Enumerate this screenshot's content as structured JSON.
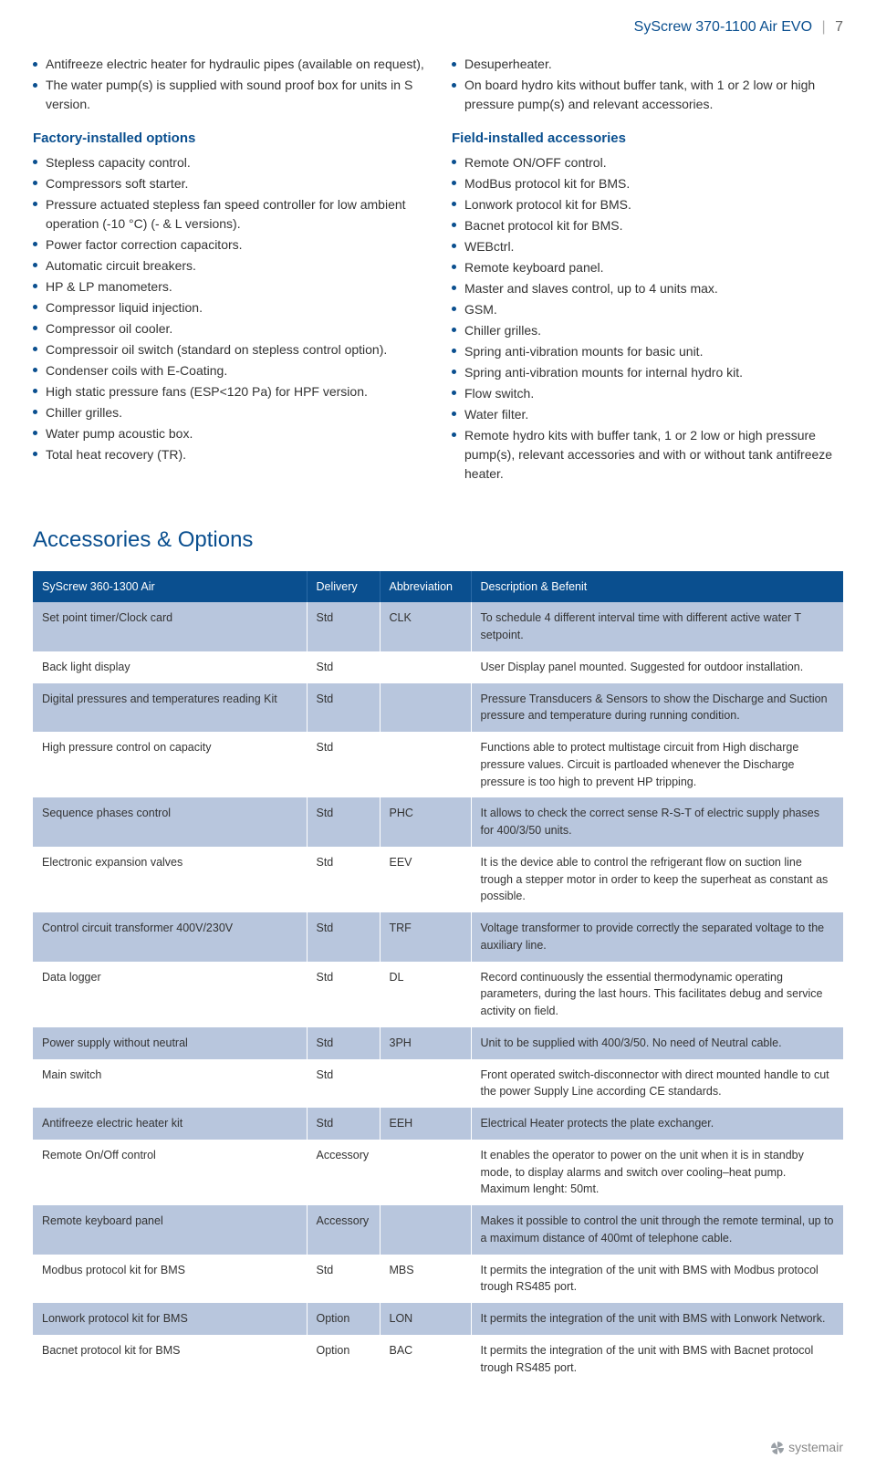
{
  "header": {
    "product": "SyScrew 370-1100 Air EVO",
    "page": "7"
  },
  "left_intro": [
    "Antifreeze electric heater for hydraulic pipes (available on request),",
    "The water pump(s) is supplied with sound proof box for units in S version."
  ],
  "factory_title": "Factory-installed options",
  "factory_items": [
    "Stepless capacity control.",
    "Compressors soft starter.",
    "Pressure actuated stepless fan speed controller for low ambient operation (-10 °C) (- & L versions).",
    "Power factor correction capacitors.",
    "Automatic circuit breakers.",
    "HP & LP manometers.",
    "Compressor liquid injection.",
    "Compressor oil cooler.",
    "Compressoir oil switch (standard on stepless control option).",
    "Condenser coils with E-Coating.",
    "High static pressure fans (ESP<120 Pa) for HPF version.",
    "Chiller grilles.",
    "Water pump acoustic box.",
    "Total heat recovery (TR)."
  ],
  "right_intro": [
    "Desuperheater.",
    "On board hydro kits without buffer tank, with 1 or 2 low or high pressure pump(s) and relevant accessories."
  ],
  "field_title": "Field-installed accessories",
  "field_items": [
    "Remote ON/OFF control.",
    "ModBus protocol kit for BMS.",
    "Lonwork protocol kit for BMS.",
    "Bacnet protocol kit for BMS.",
    "WEBctrl.",
    "Remote keyboard panel.",
    "Master and slaves control, up to 4 units max.",
    "GSM.",
    "Chiller grilles.",
    "Spring anti-vibration mounts for basic unit.",
    "Spring anti-vibration mounts for internal hydro kit.",
    "Flow switch.",
    "Water filter.",
    "Remote hydro kits with buffer tank, 1 or 2 low or high pressure pump(s), relevant accessories and with or without tank antifreeze heater."
  ],
  "acc_title": "Accessories & Options",
  "table": {
    "headers": [
      "SyScrew 360-1300 Air",
      "Delivery",
      "Abbreviation",
      "Description & Befenit"
    ],
    "rows": [
      {
        "name": "Set point timer/Clock card",
        "delivery": "Std",
        "abbr": "CLK",
        "desc": "To schedule 4 different interval time with different active water T setpoint.",
        "shade": "odd"
      },
      {
        "name": "Back light display",
        "delivery": "Std",
        "abbr": "",
        "desc": "User Display panel mounted. Suggested for outdoor installation.",
        "shade": "even"
      },
      {
        "name": "Digital pressures and temperatures reading Kit",
        "delivery": "Std",
        "abbr": "",
        "desc": "Pressure Transducers & Sensors to show the Discharge and Suction pressure and temperature during running condition.",
        "shade": "odd"
      },
      {
        "name": "High pressure control on capacity",
        "delivery": "Std",
        "abbr": "",
        "desc": "Functions able to protect multistage circuit from High discharge pressure values. Circuit is partloaded whenever the Discharge pressure is too high to prevent HP tripping.",
        "shade": "even"
      },
      {
        "name": "Sequence phases control",
        "delivery": "Std",
        "abbr": "PHC",
        "desc": "It allows to check the correct sense R-S-T of electric supply phases for 400/3/50 units.",
        "shade": "odd"
      },
      {
        "name": "Electronic expansion valves",
        "delivery": "Std",
        "abbr": "EEV",
        "desc": "It is the device able to control the refrigerant flow on suction line trough a stepper motor in order to keep the superheat as constant as possible.",
        "shade": "even"
      },
      {
        "name": "Control circuit transformer 400V/230V",
        "delivery": "Std",
        "abbr": "TRF",
        "desc": "Voltage transformer to provide correctly the separated voltage to the auxiliary line.",
        "shade": "odd"
      },
      {
        "name": "Data logger",
        "delivery": "Std",
        "abbr": "DL",
        "desc": "Record continuously the essential thermodynamic operating parameters, during the last hours. This facilitates debug and service activity on field.",
        "shade": "even"
      },
      {
        "name": "Power supply without neutral",
        "delivery": "Std",
        "abbr": "3PH",
        "desc": "Unit to be supplied with 400/3/50. No need of Neutral cable.",
        "shade": "odd"
      },
      {
        "name": "Main switch",
        "delivery": "Std",
        "abbr": "",
        "desc": "Front operated switch-disconnector with direct mounted handle to cut the power Supply Line according CE standards.",
        "shade": "even"
      },
      {
        "name": "Antifreeze electric heater kit",
        "delivery": "Std",
        "abbr": "EEH",
        "desc": "Electrical Heater protects the plate exchanger.",
        "shade": "odd"
      },
      {
        "name": "Remote On/Off control",
        "delivery": "Accessory",
        "abbr": "",
        "desc": "It enables the operator to power on the unit when it is in standby mode, to display alarms and switch over cooling–heat pump. Maximum lenght: 50mt.",
        "shade": "even"
      },
      {
        "name": "Remote keyboard panel",
        "delivery": "Accessory",
        "abbr": "",
        "desc": "Makes it possible to control the unit through the remote terminal, up to a maximum distance of 400mt of telephone cable.",
        "shade": "odd"
      },
      {
        "name": "Modbus protocol kit for BMS",
        "delivery": "Std",
        "abbr": "MBS",
        "desc": "It permits the integration of the unit with BMS with Modbus protocol trough RS485 port.",
        "shade": "even"
      },
      {
        "name": "Lonwork protocol kit for BMS",
        "delivery": "Option",
        "abbr": "LON",
        "desc": "It permits the integration of the unit with BMS with Lonwork Network.",
        "shade": "odd"
      },
      {
        "name": "Bacnet protocol kit for BMS",
        "delivery": "Option",
        "abbr": "BAC",
        "desc": "It permits the integration of the unit with BMS with Bacnet protocol trough RS485 port.",
        "shade": "even"
      }
    ],
    "colors": {
      "header_bg": "#0a4f8f",
      "header_text": "#ffffff",
      "odd_bg": "#b8c6dd",
      "even_bg": "#ffffff",
      "grid": "#ffffff"
    }
  },
  "footer_brand": "systemair"
}
